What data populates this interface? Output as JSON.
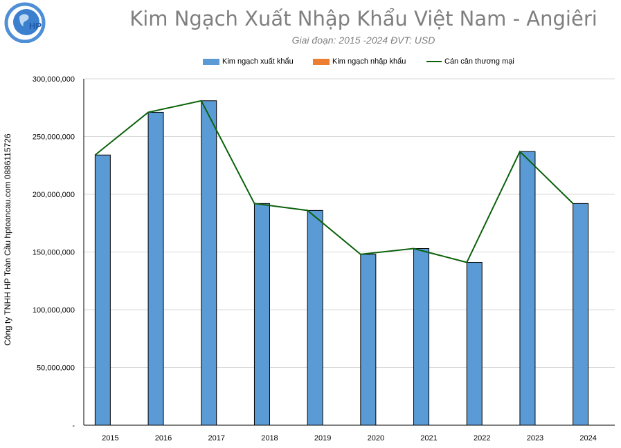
{
  "brand": {
    "logo_text": "HP"
  },
  "side_label": "Công ty TNHH HP Toàn Cầu hptoancau.com 0886115726",
  "colors": {
    "export": "#5b9bd5",
    "import": "#ed7d31",
    "balance": "#0b610b"
  },
  "chart_data": {
    "type": "bar",
    "title": "Kim Ngạch Xuất Nhập Khẩu Việt Nam - Angiêri",
    "subtitle": "Giai đoạn: 2015 -2024  ĐVT: USD",
    "categories": [
      "2015",
      "2016",
      "2017",
      "2018",
      "2019",
      "2020",
      "2021",
      "2022",
      "2023",
      "2024"
    ],
    "series": [
      {
        "name": "Kim ngạch xuất khẩu",
        "type": "bar",
        "values": [
          234000000,
          271000000,
          281000000,
          192000000,
          186000000,
          148000000,
          153000000,
          141000000,
          237000000,
          192000000
        ]
      },
      {
        "name": "Kim ngạch nhập khẩu",
        "type": "bar",
        "values": [
          0,
          0,
          0,
          0,
          0,
          0,
          0,
          0,
          0,
          0
        ]
      },
      {
        "name": "Cán cân thương mại",
        "type": "line",
        "values": [
          234000000,
          271000000,
          281000000,
          192000000,
          186000000,
          148000000,
          153000000,
          141000000,
          237000000,
          192000000
        ]
      }
    ],
    "ylim": [
      0,
      300000000
    ],
    "yticks": [
      0,
      50000000,
      100000000,
      150000000,
      200000000,
      250000000,
      300000000
    ],
    "ytick_labels": [
      "-",
      "50,000,000",
      "100,000,000",
      "150,000,000",
      "200,000,000",
      "250,000,000",
      "300,000,000"
    ],
    "grid": true,
    "legend_position": "top"
  }
}
